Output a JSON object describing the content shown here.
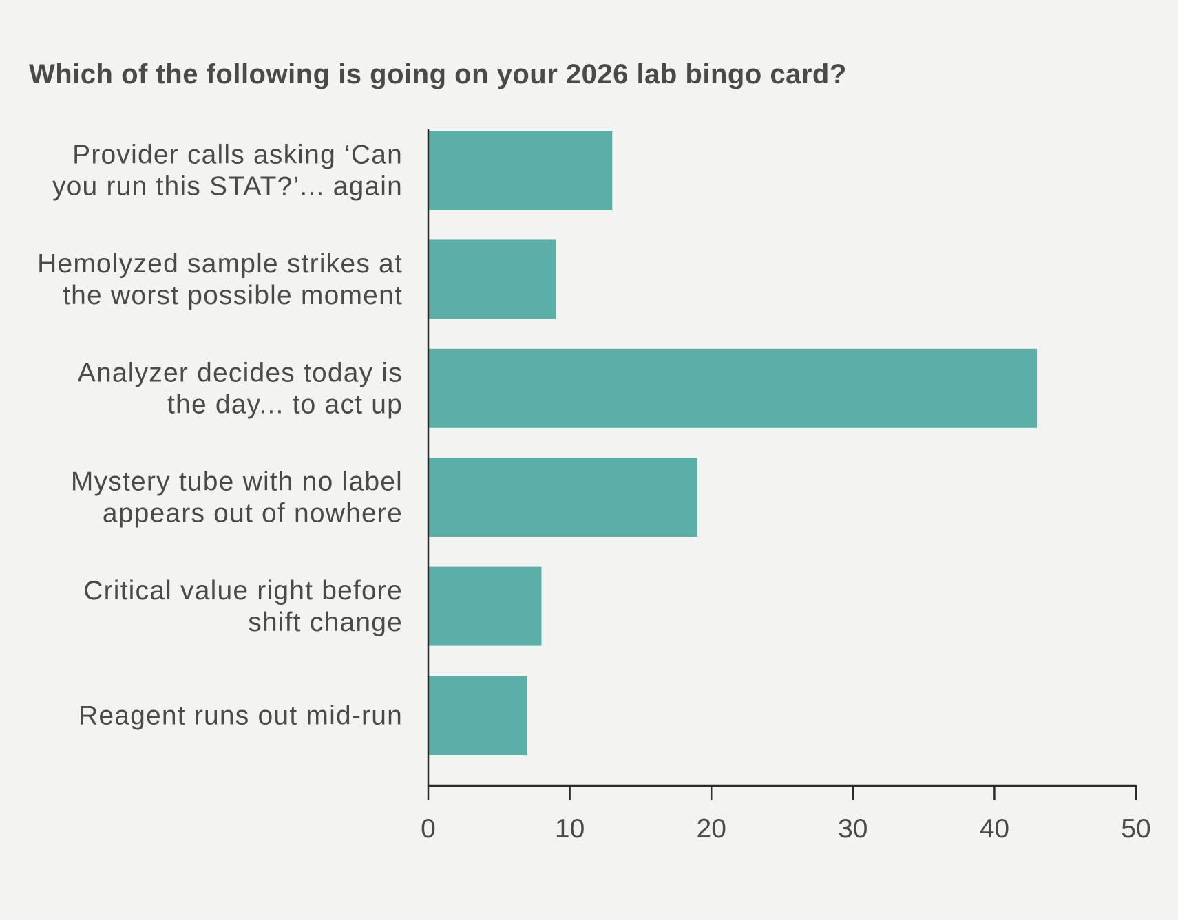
{
  "chart_data": {
    "type": "bar",
    "orientation": "horizontal",
    "title": "Which of the following is going on your 2026 lab bingo card?",
    "categories": [
      [
        "Provider calls asking ‘Can",
        "you run this STAT?’... again"
      ],
      [
        "Hemolyzed sample strikes at",
        "the worst possible moment"
      ],
      [
        "Analyzer decides today is",
        "the day... to act up"
      ],
      [
        "Mystery tube with no label",
        "appears out of nowhere"
      ],
      [
        "Critical value right before",
        "shift change"
      ],
      [
        "Reagent runs out mid-run"
      ]
    ],
    "values": [
      13,
      9,
      43,
      19,
      8,
      7
    ],
    "xlim": [
      0,
      50
    ],
    "xticks": [
      0,
      10,
      20,
      30,
      40,
      50
    ],
    "xlabel": "",
    "ylabel": "",
    "grid": false,
    "colors": {
      "bar": "#5bafa8",
      "axis": "#2b2b2b",
      "text": "#4a4a48",
      "background": "#f3f3f1"
    }
  }
}
